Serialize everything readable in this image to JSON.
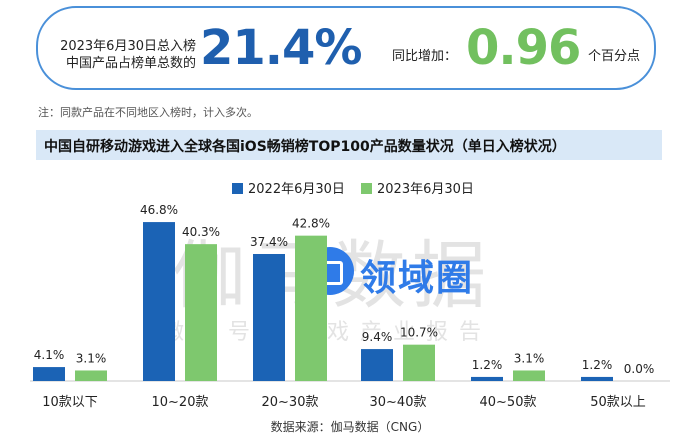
{
  "header": {
    "left_label_line1": "2023年6月30日总入榜",
    "left_label_line2": "中国产品占榜单总数的",
    "left_value": "21.4%",
    "right_label": "同比增加：",
    "right_value": "0.96",
    "right_unit": "个百分点"
  },
  "note": "注：同款产品在不同地区入榜时，计入多次。",
  "watermark": {
    "big": "伽马数据",
    "small": "微信号：游戏产业报告",
    "logo_text": "领域圈"
  },
  "colors": {
    "series_2022": "#1b63b5",
    "series_2023": "#7ec86e",
    "accent_blue": "#1f5fae",
    "accent_green": "#72c05f"
  },
  "source": "数据来源：伽马数据（CNG）",
  "chart_data": {
    "type": "bar",
    "title": "中国自研移动游戏进入全球各国iOS畅销榜TOP100产品数量状况（单日入榜状况）",
    "categories": [
      "10款以下",
      "10~20款",
      "20~30款",
      "30~40款",
      "40~50款",
      "50款以上"
    ],
    "series": [
      {
        "name": "2022年6月30日",
        "values": [
          4.1,
          46.8,
          37.4,
          9.4,
          1.2,
          1.2
        ],
        "labels": [
          "4.1%",
          "46.8%",
          "37.4%",
          "9.4%",
          "1.2%",
          "1.2%"
        ]
      },
      {
        "name": "2023年6月30日",
        "values": [
          3.1,
          40.3,
          42.8,
          10.7,
          3.1,
          0.0
        ],
        "labels": [
          "3.1%",
          "40.3%",
          "42.8%",
          "10.7%",
          "3.1%",
          "0.0%"
        ]
      }
    ],
    "xlabel": "",
    "ylabel": "",
    "ylim": [
      0,
      48
    ],
    "grid": false,
    "legend": "top"
  }
}
